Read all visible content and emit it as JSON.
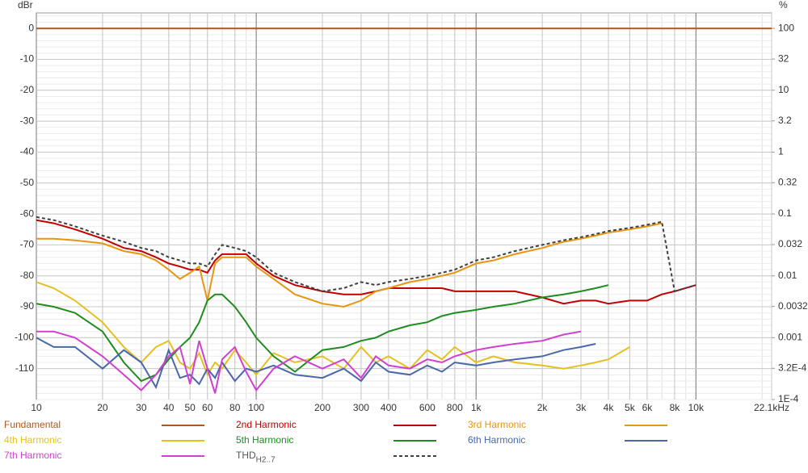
{
  "chart_data": {
    "type": "line",
    "y_label": "dBr",
    "y2_label": "%",
    "x_log": true,
    "y2_log": true,
    "grid": true,
    "xlim": [
      10,
      22100
    ],
    "ylim": [
      -120,
      5
    ],
    "y2lim": [
      0.0001,
      177.8
    ],
    "xticks": [
      10,
      20,
      30,
      40,
      50,
      60,
      80,
      100,
      200,
      300,
      400,
      600,
      800,
      {
        "value": 1000,
        "label": "1k"
      },
      {
        "value": 2000,
        "label": "2k"
      },
      {
        "value": 3000,
        "label": "3k"
      },
      {
        "value": 4000,
        "label": "4k"
      },
      {
        "value": 5000,
        "label": "5k"
      },
      {
        "value": 6000,
        "label": "6k"
      },
      {
        "value": 8000,
        "label": "8k"
      },
      {
        "value": 10000,
        "label": "10k"
      },
      {
        "value": 22100,
        "label": "22.1kHz"
      }
    ],
    "yticks": [
      0,
      -10,
      -20,
      -30,
      -40,
      -50,
      -60,
      -70,
      -80,
      -90,
      -100,
      -110
    ],
    "y2ticks": [
      100,
      32,
      10,
      3.2,
      1,
      0.32,
      0.1,
      0.032,
      0.01,
      0.0032,
      0.001,
      {
        "value": 0.00032,
        "label": "3.2E-4"
      },
      {
        "value": 0.0001,
        "label": "1E-4"
      }
    ],
    "x": [
      10,
      12,
      15,
      20,
      25,
      30,
      35,
      40,
      45,
      50,
      55,
      60,
      65,
      70,
      80,
      90,
      100,
      120,
      150,
      200,
      250,
      300,
      350,
      400,
      500,
      600,
      700,
      800,
      1000,
      1200,
      1500,
      2000,
      2500,
      3000,
      3500,
      4000,
      5000,
      6000,
      7000,
      8000,
      10000,
      22100
    ],
    "series": [
      {
        "name": "Fundamental",
        "color": "#b0561e",
        "values": [
          0,
          0,
          0,
          0,
          0,
          0,
          0,
          0,
          0,
          0,
          0,
          0,
          0,
          0,
          0,
          0,
          0,
          0,
          0,
          0,
          0,
          0,
          0,
          0,
          0,
          0,
          0,
          0,
          0,
          0,
          0,
          0,
          0,
          0,
          0,
          0,
          0,
          0,
          0,
          0,
          0,
          0
        ]
      },
      {
        "name": "2nd Harmonic",
        "color": "#c00000",
        "values": [
          -62,
          -63,
          -65,
          -68,
          -71,
          -72,
          -74,
          -76,
          -77,
          -78,
          -78,
          -79,
          -75,
          -73,
          -73,
          -73,
          -76,
          -80,
          -83,
          -85,
          -86,
          -86,
          -85,
          -84,
          -84,
          -84,
          -84,
          -85,
          -85,
          -85,
          -85,
          -87,
          -89,
          -88,
          -88,
          -89,
          -88,
          -88,
          -86,
          -85,
          -83,
          null
        ]
      },
      {
        "name": "3rd Harmonic",
        "color": "#e6960f",
        "values": [
          -68,
          -68,
          -68.5,
          -69.5,
          -72,
          -73,
          -75,
          -78,
          -81,
          -79,
          -77,
          -88,
          -76,
          -74,
          -74,
          -74,
          -77,
          -81,
          -86,
          -89,
          -90,
          -88,
          -85,
          -84,
          -82,
          -81,
          -80,
          -79,
          -76,
          -75,
          -73,
          -71,
          -69,
          -68,
          -67,
          -66,
          -65,
          -64,
          -63,
          null,
          null,
          null
        ]
      },
      {
        "name": "4th Harmonic",
        "color": "#e6c01e",
        "values": [
          -82,
          -84,
          -88,
          -95,
          -103,
          -108,
          -103,
          -101,
          -108,
          -110,
          -105,
          -112,
          -108,
          -110,
          -104,
          -108,
          -112,
          -105,
          -108,
          -106,
          -110,
          -103,
          -108,
          -106,
          -110,
          -104,
          -107,
          -103,
          -108,
          -106,
          -108,
          -109,
          -110,
          -109,
          -108,
          -107,
          -103,
          null,
          null,
          null,
          null,
          null
        ]
      },
      {
        "name": "5th Harmonic",
        "color": "#1e8c1e",
        "values": [
          -89,
          -90,
          -92,
          -98,
          -108,
          -114,
          -112,
          -107,
          -103,
          -100,
          -95,
          -88,
          -86,
          -86,
          -90,
          -95,
          -100,
          -106,
          -111,
          -104,
          -103,
          -101,
          -100,
          -98,
          -96,
          -95,
          -93,
          -92,
          -91,
          -90,
          -89,
          -87,
          -86,
          -85,
          -84,
          -83,
          null,
          null,
          null,
          null,
          null,
          null
        ]
      },
      {
        "name": "6th Harmonic",
        "color": "#4a68a8",
        "values": [
          -100,
          -103,
          -103,
          -110,
          -104,
          -108,
          -116,
          -104,
          -113,
          -112,
          -115,
          -110,
          -113,
          -108,
          -114,
          -110,
          -111,
          -109,
          -112,
          -113,
          -110,
          -114,
          -108,
          -111,
          -112,
          -109,
          -111,
          -108,
          -109,
          -108,
          -107,
          -106,
          -104,
          -103,
          -102,
          null,
          null,
          null,
          null,
          null,
          null,
          null
        ]
      },
      {
        "name": "7th Harmonic",
        "color": "#d040d0",
        "values": [
          -98,
          -98,
          -100,
          -106,
          -112,
          -117,
          -112,
          -106,
          -103,
          -115,
          -101,
          -110,
          -118,
          -107,
          -103,
          -111,
          -117,
          -110,
          -106,
          -110,
          -107,
          -113,
          -106,
          -109,
          -110,
          -107,
          -108,
          -106,
          -104,
          -103,
          -102,
          -101,
          -99,
          -98,
          null,
          null,
          null,
          null,
          null,
          null,
          null,
          null
        ]
      },
      {
        "name": "THD",
        "subscript": "H2..7",
        "color": "#404040",
        "dash": true,
        "values": [
          -61,
          -62,
          -64,
          -67,
          -69,
          -71,
          -72,
          -74,
          -75,
          -76,
          -76,
          -77,
          -73,
          -70,
          -71,
          -72,
          -74,
          -79,
          -82,
          -85,
          -84,
          -82,
          -83,
          -82,
          -81,
          -80,
          -79,
          -78,
          -75,
          -74,
          -72,
          -70,
          -68.5,
          -67.5,
          -66.5,
          -65.5,
          -64.5,
          -63.5,
          -62.5,
          -85,
          -83,
          null
        ]
      }
    ]
  }
}
